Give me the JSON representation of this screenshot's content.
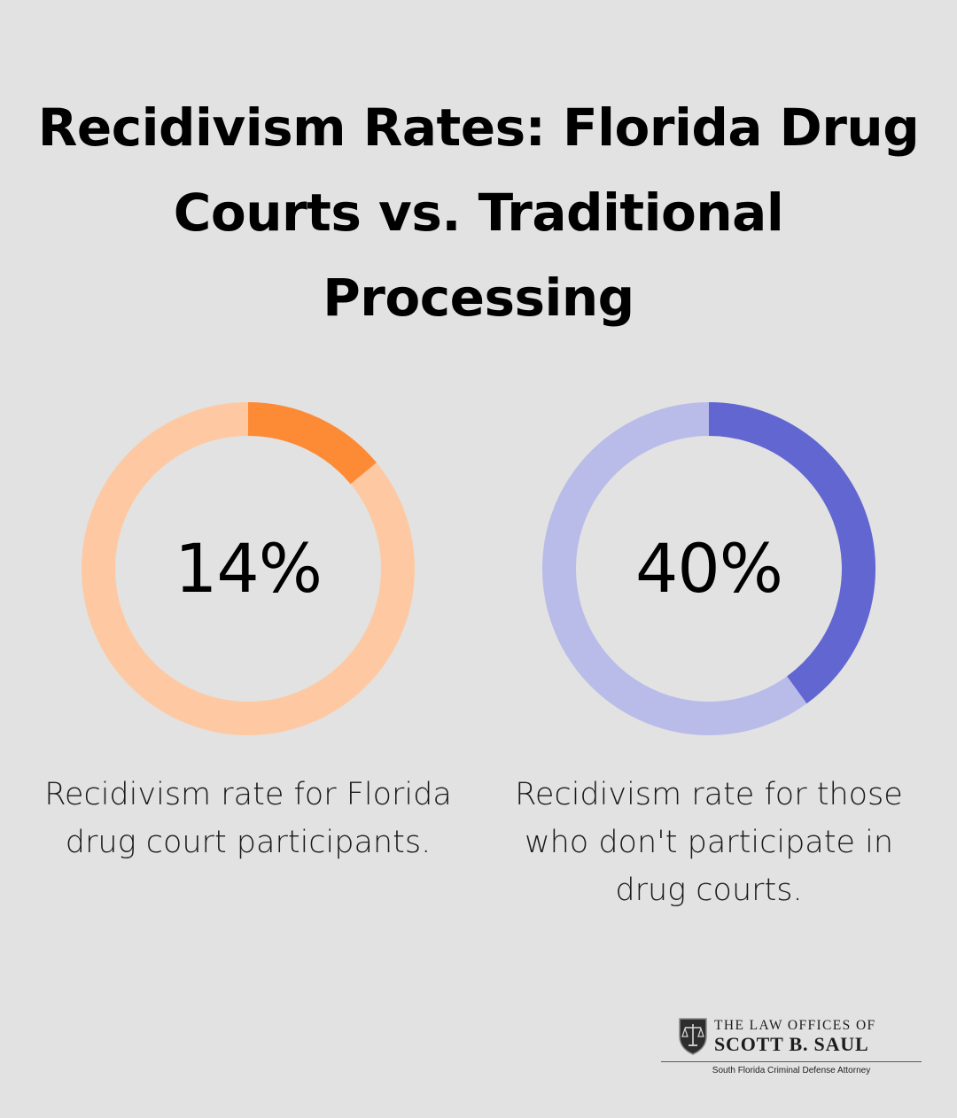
{
  "title": "Recidivism Rates: Florida Drug Courts vs. Traditional Processing",
  "chart_data": [
    {
      "type": "pie",
      "variant": "donut",
      "value": 14,
      "max": 100,
      "label": "14%",
      "caption": "Recidivism rate for Florida drug court participants.",
      "colors": {
        "fill": "#fd8a35",
        "track": "#fec9a2"
      }
    },
    {
      "type": "pie",
      "variant": "donut",
      "value": 40,
      "max": 100,
      "label": "40%",
      "caption": "Recidivism rate for those who don't participate in drug courts.",
      "colors": {
        "fill": "#6266d1",
        "track": "#b9bbe9"
      }
    }
  ],
  "logo": {
    "line1": "THE LAW OFFICES OF",
    "line2": "SCOTT B. SAUL",
    "tagline": "South Florida Criminal Defense Attorney",
    "icon": "scales-of-justice-icon"
  },
  "colors": {
    "background": "#e1e2e1",
    "text": "#000000"
  }
}
